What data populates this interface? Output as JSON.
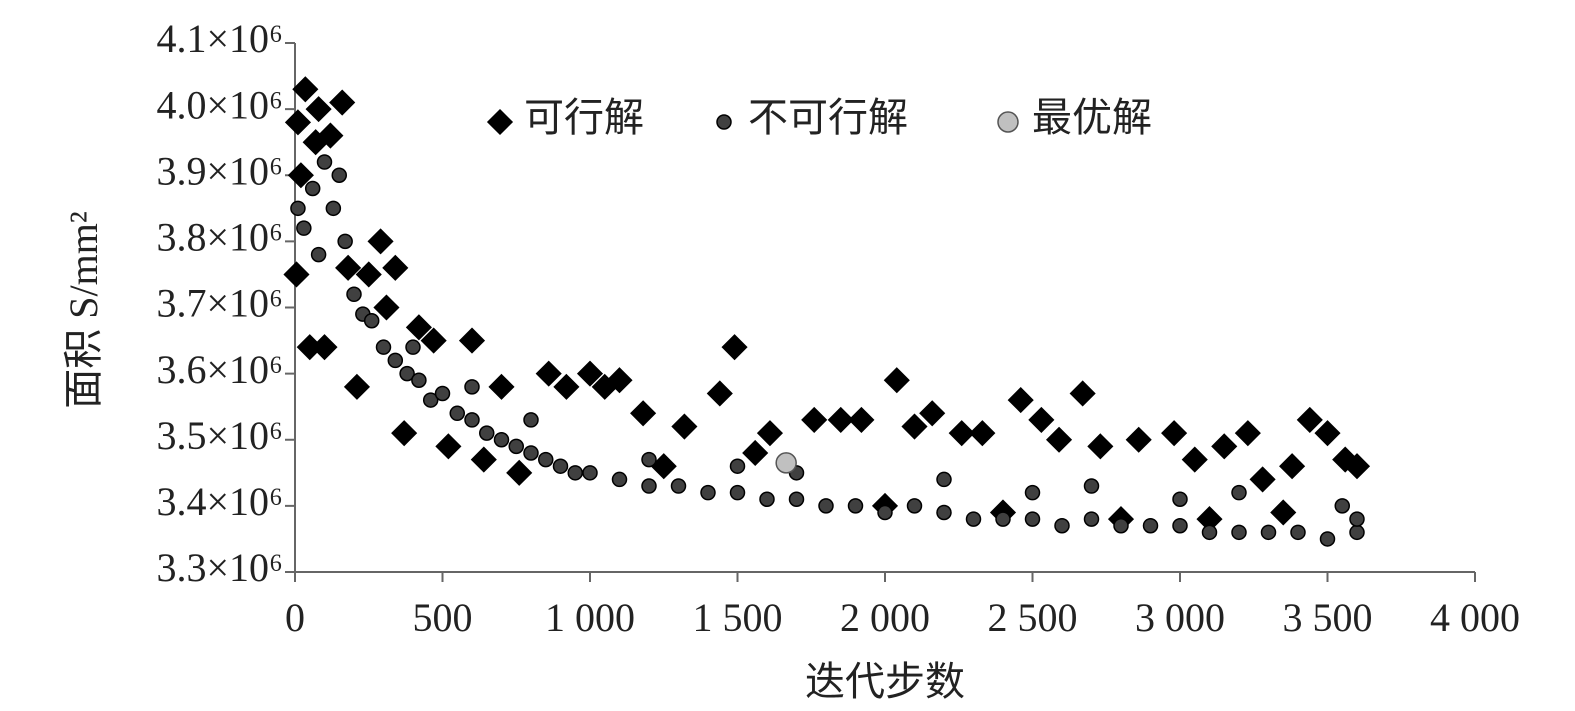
{
  "chart_data": {
    "type": "scatter",
    "x_label": "迭代步数",
    "y_label": "面积 S/mm²",
    "xlim": [
      0,
      4000
    ],
    "ylim": [
      3300000,
      4100000
    ],
    "xticks": [
      0,
      500,
      {
        "value": 1000,
        "label": "1 000"
      },
      {
        "value": 1500,
        "label": "1 500"
      },
      {
        "value": 2000,
        "label": "2 000"
      },
      {
        "value": 2500,
        "label": "2 500"
      },
      {
        "value": 3000,
        "label": "3 000"
      },
      {
        "value": 3500,
        "label": "3 500"
      },
      {
        "value": 4000,
        "label": "4 000"
      }
    ],
    "yticks": [
      {
        "value": 3300000,
        "label": "3.3×10⁶"
      },
      {
        "value": 3400000,
        "label": "3.4×10⁶"
      },
      {
        "value": 3500000,
        "label": "3.5×10⁶"
      },
      {
        "value": 3600000,
        "label": "3.6×10⁶"
      },
      {
        "value": 3700000,
        "label": "3.7×10⁶"
      },
      {
        "value": 3800000,
        "label": "3.8×10⁶"
      },
      {
        "value": 3900000,
        "label": "3.9×10⁶"
      },
      {
        "value": 4000000,
        "label": "4.0×10⁶"
      },
      {
        "value": 4100000,
        "label": "4.1×10⁶"
      }
    ],
    "series": [
      {
        "name": "可行解",
        "color": "#000000",
        "marker": "diamond",
        "x": [
          5,
          10,
          20,
          35,
          50,
          70,
          80,
          100,
          120,
          160,
          180,
          210,
          250,
          290,
          310,
          340,
          370,
          420,
          470,
          520,
          600,
          640,
          700,
          760,
          860,
          920,
          1000,
          1050,
          1100,
          1180,
          1250,
          1320,
          1440,
          1490,
          1560,
          1610,
          1760,
          1850,
          1920,
          2040,
          2100,
          2160,
          2260,
          2330,
          2460,
          2530,
          2590,
          2670,
          2730,
          2860,
          2980,
          3050,
          3150,
          3230,
          3280,
          3380,
          3440,
          3500,
          3560,
          3600,
          3350,
          3100,
          2800,
          2400,
          2000
        ],
        "values": [
          3750000,
          3980000,
          3900000,
          4030000,
          3640000,
          3950000,
          4000000,
          3640000,
          3960000,
          4010000,
          3760000,
          3580000,
          3750000,
          3800000,
          3700000,
          3760000,
          3510000,
          3670000,
          3650000,
          3490000,
          3650000,
          3470000,
          3580000,
          3450000,
          3600000,
          3580000,
          3600000,
          3580000,
          3590000,
          3540000,
          3460000,
          3520000,
          3570000,
          3640000,
          3480000,
          3510000,
          3530000,
          3530000,
          3530000,
          3590000,
          3520000,
          3540000,
          3510000,
          3510000,
          3560000,
          3530000,
          3500000,
          3570000,
          3490000,
          3500000,
          3510000,
          3470000,
          3490000,
          3510000,
          3440000,
          3460000,
          3530000,
          3510000,
          3470000,
          3460000,
          3390000,
          3380000,
          3380000,
          3390000,
          3400000
        ]
      },
      {
        "name": "不可行解",
        "color": "#404040",
        "marker": "circle",
        "x": [
          10,
          30,
          60,
          80,
          100,
          130,
          150,
          170,
          200,
          230,
          260,
          300,
          340,
          380,
          420,
          460,
          500,
          550,
          600,
          650,
          700,
          750,
          800,
          850,
          900,
          950,
          1000,
          1100,
          1200,
          1300,
          1400,
          1500,
          1600,
          1700,
          1800,
          1900,
          2000,
          2100,
          2200,
          2300,
          2400,
          2500,
          2600,
          2700,
          2800,
          2900,
          3000,
          3100,
          3200,
          3300,
          3400,
          3500,
          3600,
          1200,
          1700,
          2200,
          2700,
          3200,
          800,
          400,
          600,
          1500,
          2500,
          3000,
          3550,
          3600
        ],
        "values": [
          3850000,
          3820000,
          3880000,
          3780000,
          3920000,
          3850000,
          3900000,
          3800000,
          3720000,
          3690000,
          3680000,
          3640000,
          3620000,
          3600000,
          3590000,
          3560000,
          3570000,
          3540000,
          3530000,
          3510000,
          3500000,
          3490000,
          3480000,
          3470000,
          3460000,
          3450000,
          3450000,
          3440000,
          3430000,
          3430000,
          3420000,
          3420000,
          3410000,
          3410000,
          3400000,
          3400000,
          3390000,
          3400000,
          3390000,
          3380000,
          3380000,
          3380000,
          3370000,
          3380000,
          3370000,
          3370000,
          3370000,
          3360000,
          3360000,
          3360000,
          3360000,
          3350000,
          3360000,
          3470000,
          3450000,
          3440000,
          3430000,
          3420000,
          3530000,
          3640000,
          3580000,
          3460000,
          3420000,
          3410000,
          3400000,
          3380000
        ]
      },
      {
        "name": "最优解",
        "color": "#c0c0c0",
        "marker": "circle-large",
        "x": [
          1665
        ],
        "values": [
          3465000
        ]
      }
    ]
  }
}
